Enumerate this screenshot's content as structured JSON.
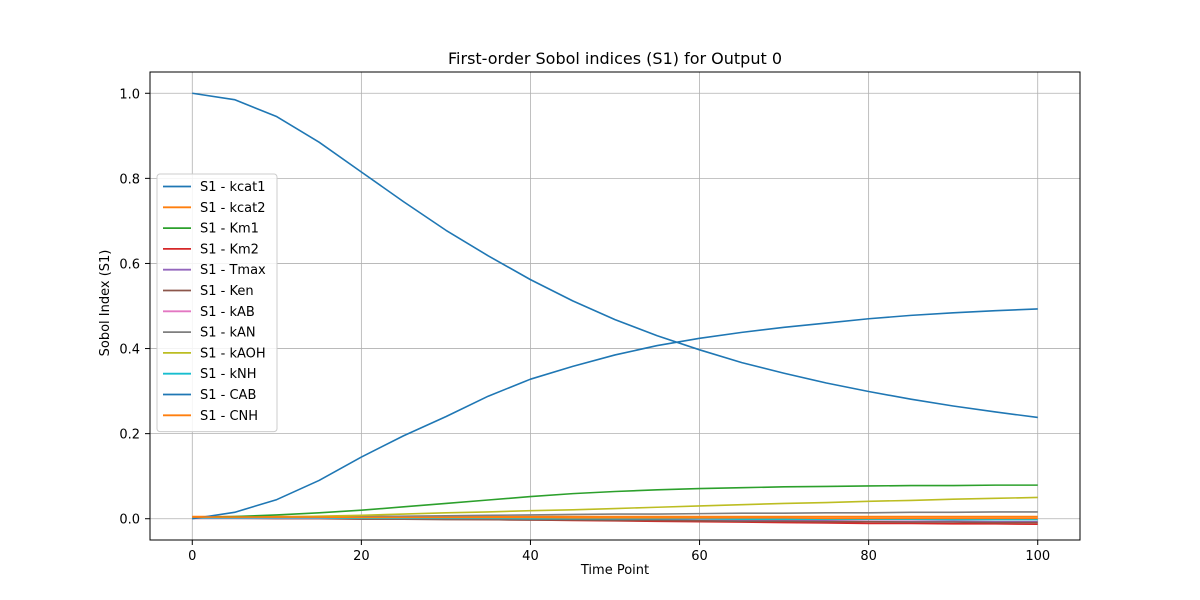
{
  "chart_data": {
    "type": "line",
    "title": "First-order Sobol indices (S1) for Output 0",
    "xlabel": "Time Point",
    "ylabel": "Sobol Index (S1)",
    "xlim": [
      -5,
      105
    ],
    "ylim": [
      -0.05,
      1.05
    ],
    "xticks": [
      0,
      20,
      40,
      60,
      80,
      100
    ],
    "xtick_labels": [
      "0",
      "20",
      "40",
      "60",
      "80",
      "100"
    ],
    "yticks": [
      0.0,
      0.2,
      0.4,
      0.6,
      0.8,
      1.0
    ],
    "ytick_labels": [
      "0.0",
      "0.2",
      "0.4",
      "0.6",
      "0.8",
      "1.0"
    ],
    "grid": true,
    "legend_position": "center-left",
    "x": [
      0,
      5,
      10,
      15,
      20,
      25,
      30,
      35,
      40,
      45,
      50,
      55,
      60,
      65,
      70,
      75,
      80,
      85,
      90,
      95,
      100
    ],
    "series": [
      {
        "name": "S1 - kcat1",
        "color": "#1f77b4",
        "values": [
          1.0,
          0.985,
          0.945,
          0.885,
          0.815,
          0.745,
          0.678,
          0.618,
          0.562,
          0.512,
          0.468,
          0.43,
          0.397,
          0.367,
          0.342,
          0.319,
          0.299,
          0.281,
          0.265,
          0.251,
          0.238
        ]
      },
      {
        "name": "S1 - kcat2",
        "color": "#ff7f0e",
        "values": [
          0.005,
          0.005,
          0.005,
          0.005,
          0.005,
          0.005,
          0.005,
          0.005,
          0.005,
          0.005,
          0.005,
          0.005,
          0.005,
          0.005,
          0.005,
          0.005,
          0.005,
          0.005,
          0.005,
          0.005,
          0.005
        ]
      },
      {
        "name": "S1 - Km1",
        "color": "#2ca02c",
        "values": [
          0.003,
          0.005,
          0.009,
          0.014,
          0.02,
          0.028,
          0.036,
          0.044,
          0.052,
          0.059,
          0.064,
          0.068,
          0.071,
          0.073,
          0.075,
          0.076,
          0.077,
          0.078,
          0.078,
          0.079,
          0.079
        ]
      },
      {
        "name": "S1 - Km2",
        "color": "#d62728",
        "values": [
          0.003,
          0.003,
          0.002,
          0.002,
          0.001,
          0.0,
          -0.001,
          -0.002,
          -0.003,
          -0.004,
          -0.005,
          -0.006,
          -0.007,
          -0.008,
          -0.009,
          -0.01,
          -0.011,
          -0.011,
          -0.012,
          -0.012,
          -0.013
        ]
      },
      {
        "name": "S1 - Tmax",
        "color": "#9467bd",
        "values": [
          0.002,
          0.002,
          0.001,
          0.001,
          0.0,
          0.0,
          -0.001,
          -0.001,
          -0.002,
          -0.002,
          -0.003,
          -0.003,
          -0.004,
          -0.004,
          -0.005,
          -0.005,
          -0.006,
          -0.006,
          -0.006,
          -0.007,
          -0.007
        ]
      },
      {
        "name": "S1 - Ken",
        "color": "#8c564b",
        "values": [
          0.001,
          0.001,
          0.0,
          0.0,
          -0.001,
          -0.001,
          -0.002,
          -0.002,
          -0.003,
          -0.003,
          -0.004,
          -0.004,
          -0.005,
          -0.006,
          -0.006,
          -0.007,
          -0.007,
          -0.008,
          -0.008,
          -0.009,
          -0.009
        ]
      },
      {
        "name": "S1 - kAB",
        "color": "#e377c2",
        "values": [
          0.001,
          0.001,
          0.001,
          0.001,
          0.001,
          0.001,
          0.001,
          0.001,
          0.001,
          0.001,
          0.001,
          0.001,
          0.001,
          0.001,
          0.001,
          0.001,
          0.001,
          0.001,
          0.001,
          0.001,
          0.001
        ]
      },
      {
        "name": "S1 - kAN",
        "color": "#7f7f7f",
        "values": [
          0.002,
          0.002,
          0.003,
          0.004,
          0.005,
          0.006,
          0.007,
          0.008,
          0.009,
          0.01,
          0.011,
          0.011,
          0.012,
          0.013,
          0.013,
          0.014,
          0.014,
          0.015,
          0.015,
          0.016,
          0.016
        ]
      },
      {
        "name": "S1 - kAOH",
        "color": "#bcbd22",
        "values": [
          0.002,
          0.003,
          0.004,
          0.006,
          0.008,
          0.011,
          0.014,
          0.016,
          0.019,
          0.021,
          0.024,
          0.027,
          0.03,
          0.033,
          0.036,
          0.038,
          0.041,
          0.043,
          0.046,
          0.048,
          0.05
        ]
      },
      {
        "name": "S1 - kNH",
        "color": "#17becf",
        "values": [
          0.002,
          0.002,
          0.002,
          0.002,
          0.001,
          0.001,
          0.001,
          0.001,
          0.0,
          0.0,
          0.0,
          0.0,
          0.0,
          -0.001,
          -0.001,
          -0.001,
          -0.001,
          -0.001,
          -0.002,
          -0.002,
          -0.002
        ]
      },
      {
        "name": "S1 - CAB",
        "color": "#1f77b4",
        "values": [
          0.0,
          0.015,
          0.045,
          0.09,
          0.145,
          0.195,
          0.24,
          0.288,
          0.328,
          0.358,
          0.385,
          0.407,
          0.424,
          0.438,
          0.45,
          0.46,
          0.47,
          0.478,
          0.484,
          0.489,
          0.493
        ]
      },
      {
        "name": "S1 - CNH",
        "color": "#ff7f0e",
        "values": [
          0.004,
          0.004,
          0.004,
          0.004,
          0.003,
          0.003,
          0.003,
          0.003,
          0.003,
          0.002,
          0.002,
          0.002,
          0.002,
          0.002,
          0.002,
          0.001,
          0.001,
          0.001,
          0.001,
          0.001,
          0.001
        ]
      }
    ]
  }
}
